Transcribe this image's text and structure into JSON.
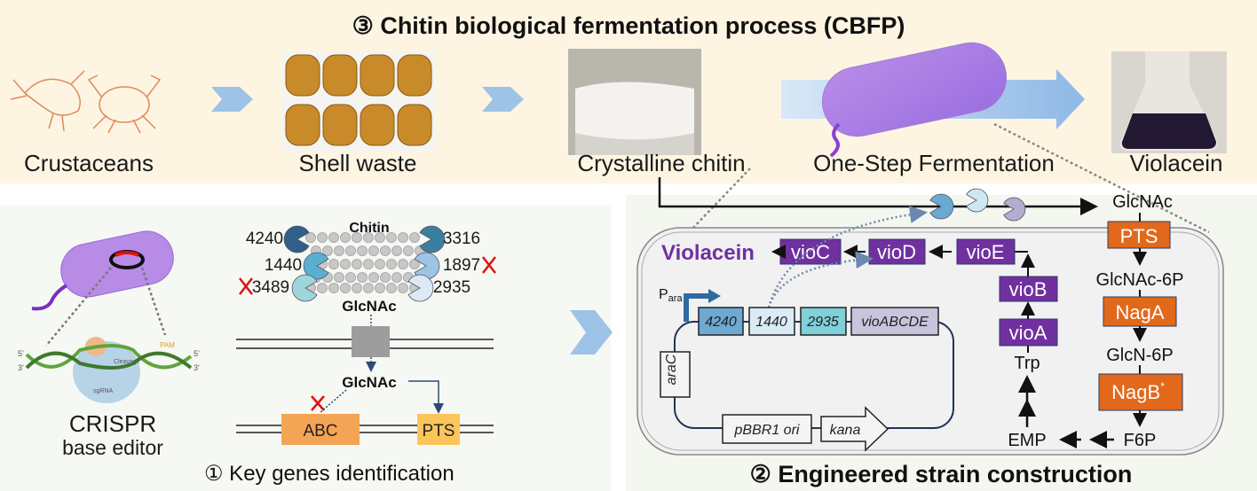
{
  "title": "③ Chitin biological fermentation process (CBFP)",
  "process_steps": [
    {
      "label": "Crustaceans"
    },
    {
      "label": "Shell waste"
    },
    {
      "label": "Crystalline chitin"
    },
    {
      "label": "One-Step Fermentation"
    },
    {
      "label": "Violacein"
    }
  ],
  "left_panel": {
    "title": "① Key genes identification",
    "crispr_line1": "CRISPR",
    "crispr_line2": "base editor",
    "crispr_labels": {
      "pam": "PAM",
      "cleavage": "Cleavage",
      "sgrna": "sgRNA",
      "five": "5'",
      "three": "3'"
    },
    "substrate": "Chitin",
    "enzymes": [
      {
        "id": "4240",
        "knocked_out": false,
        "color": "#2f5f8a"
      },
      {
        "id": "3316",
        "knocked_out": false,
        "color": "#3a7fa0"
      },
      {
        "id": "1440",
        "knocked_out": false,
        "color": "#5aafd0"
      },
      {
        "id": "1897",
        "knocked_out": true,
        "color": "#9cc4e4"
      },
      {
        "id": "3489",
        "knocked_out": true,
        "color": "#9fd6dc"
      },
      {
        "id": "2935",
        "knocked_out": false,
        "color": "#dde9f5"
      }
    ],
    "product1": "GlcNAc",
    "product2": "GlcNAc",
    "transporters": [
      {
        "label": "ABC",
        "blocked": true,
        "color": "#f4a455"
      },
      {
        "label": "PTS",
        "blocked": false,
        "color": "#fcc55a"
      }
    ]
  },
  "right_panel": {
    "title": "② Engineered strain construction",
    "glcnac": "GlcNAc",
    "pathway": [
      "PTS",
      "GlcNAc-6P",
      "NagA",
      "GlcN-6P",
      "NagB",
      "F6P",
      "EMP",
      "Trp"
    ],
    "nagb_mark": "*",
    "vio_genes": [
      "vioA",
      "vioB",
      "vioE",
      "vioD",
      "vioC"
    ],
    "product": "Violacein",
    "promoter": "P",
    "promoter_sub": "ara",
    "plasmid_genes": [
      "4240",
      "1440",
      "2935",
      "vioABCDE"
    ],
    "arac": "araC",
    "ori": "pBBR1 ori",
    "kana": "kana",
    "colors": {
      "vio": "#7030a0",
      "pathway": "#e2691b",
      "product_text": "#7030a0"
    }
  }
}
